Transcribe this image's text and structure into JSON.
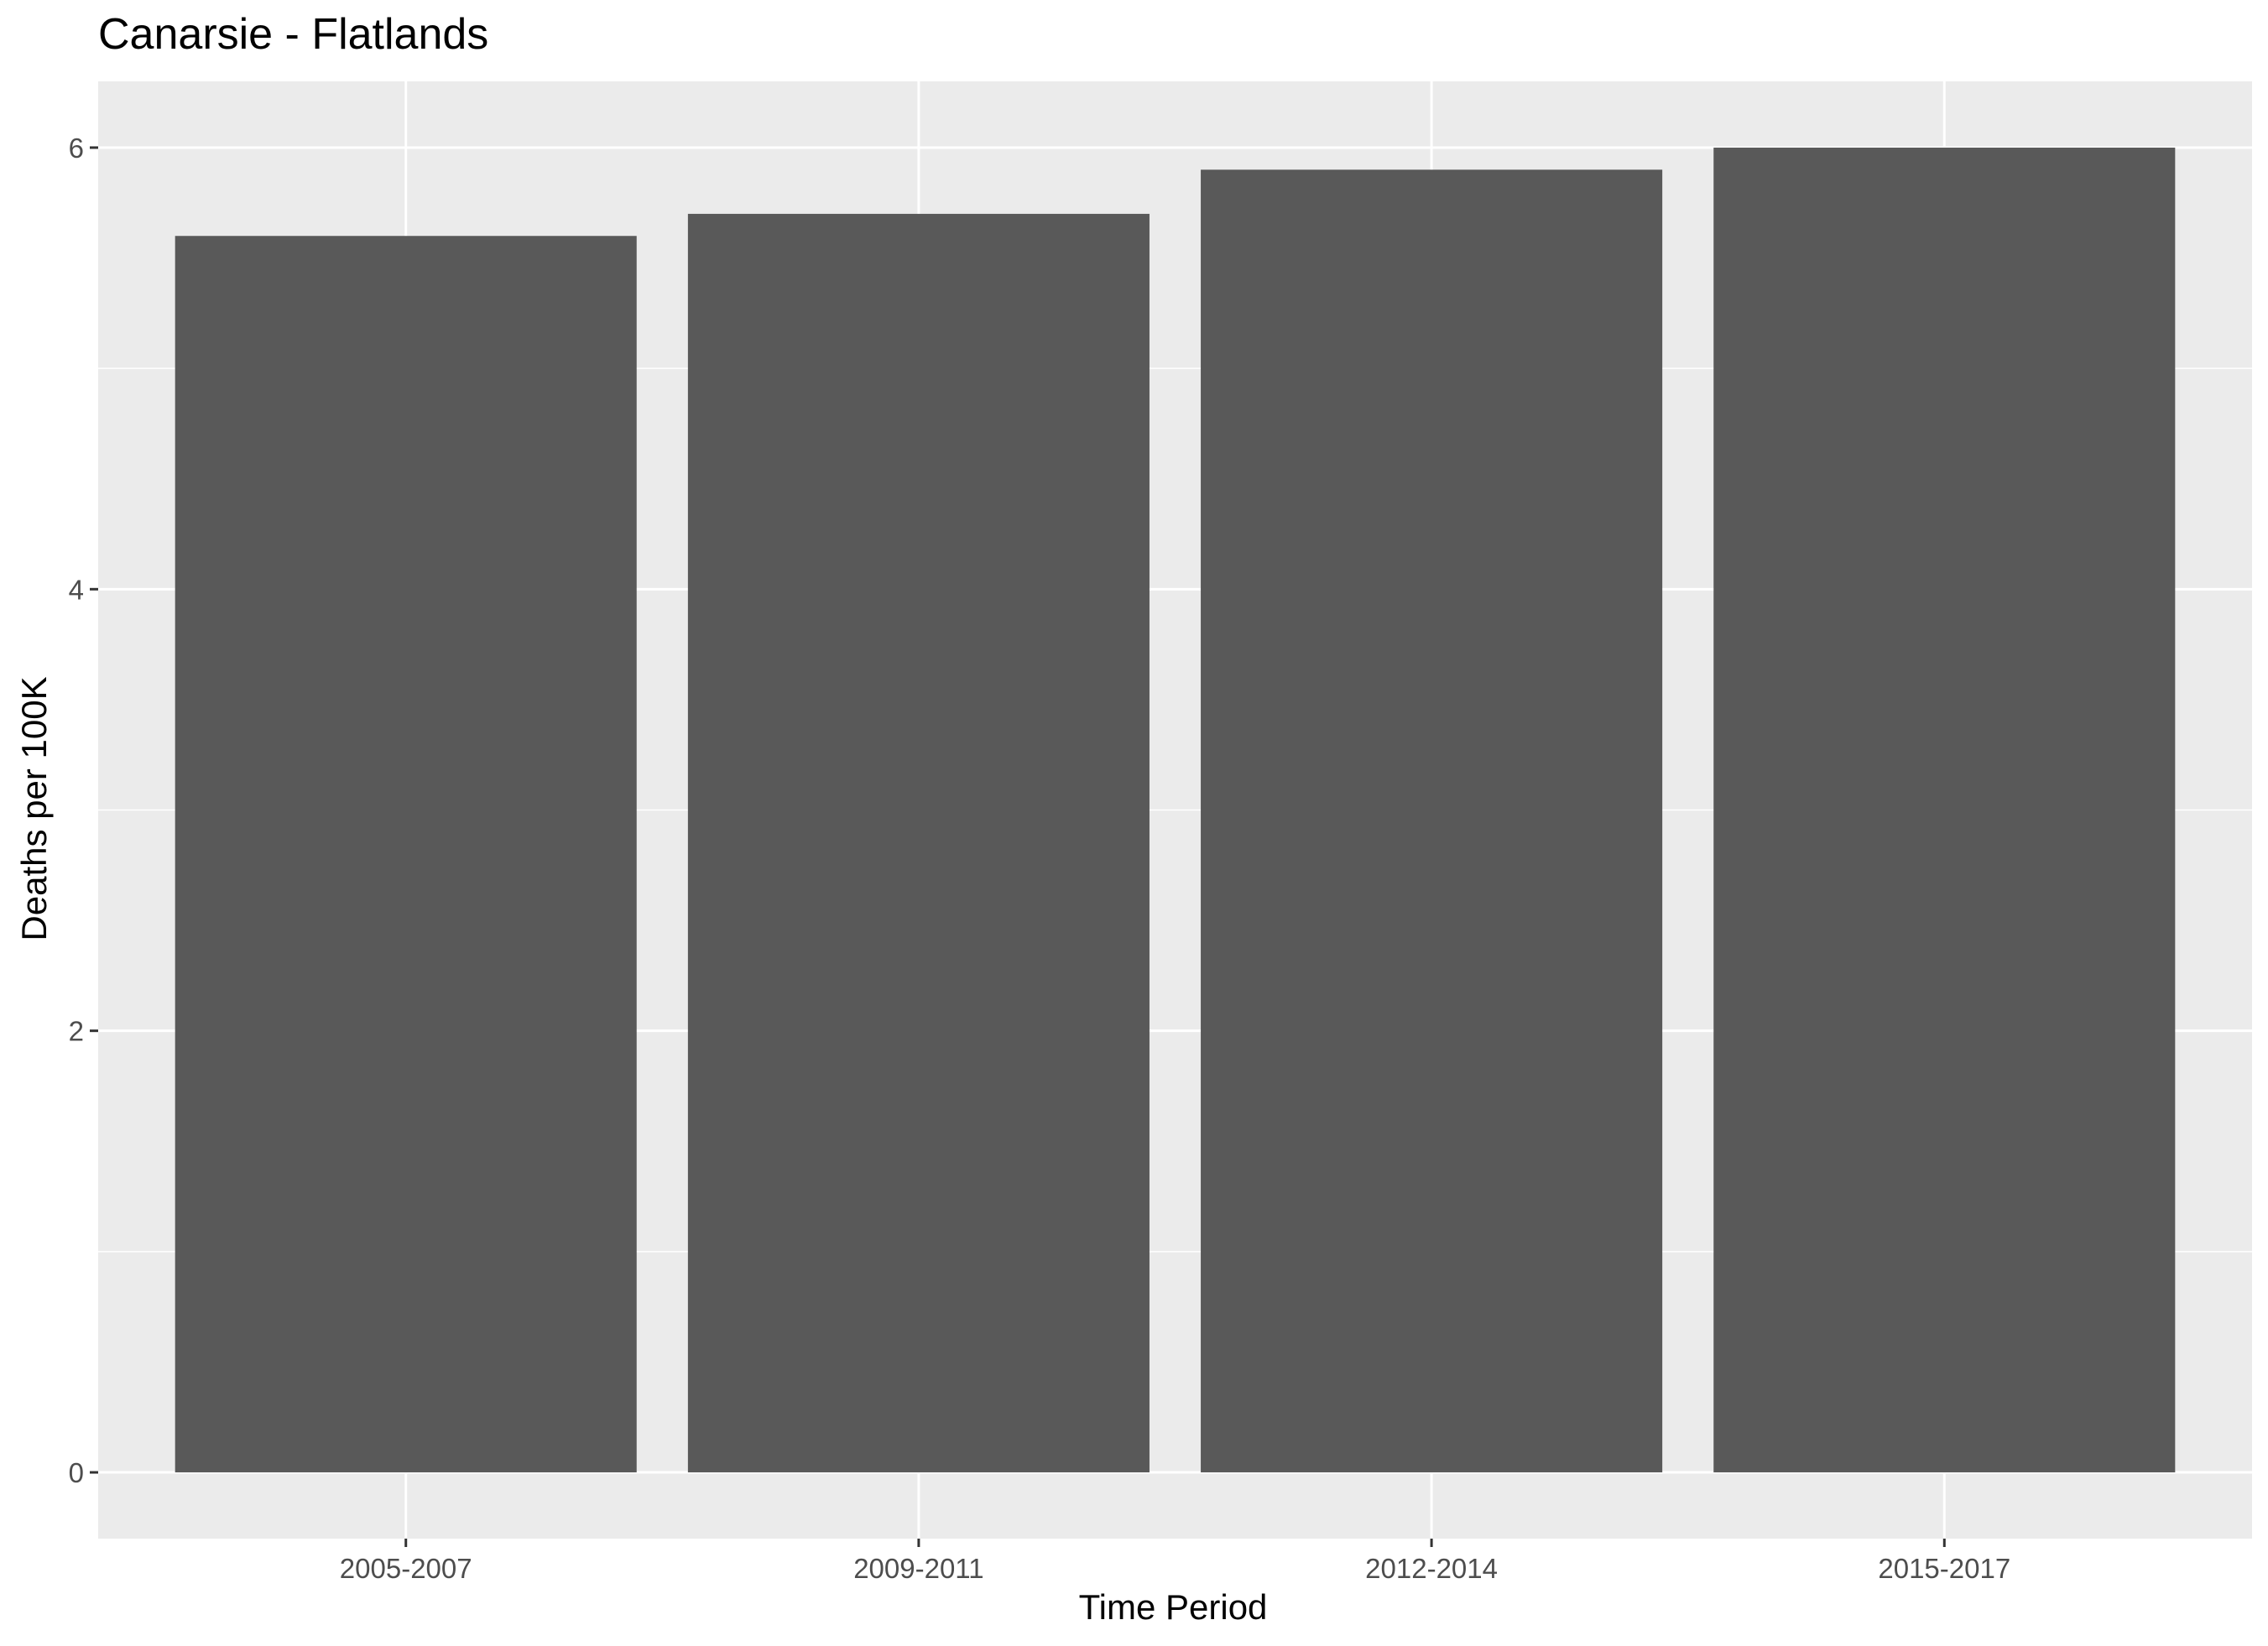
{
  "chart_data": {
    "type": "bar",
    "title": "Canarsie - Flatlands",
    "xlabel": "Time Period",
    "ylabel": "Deaths per 100K",
    "categories": [
      "2005-2007",
      "2009-2011",
      "2012-2014",
      "2015-2017"
    ],
    "values": [
      5.6,
      5.7,
      5.9,
      6.0
    ],
    "ylim": [
      -0.3,
      6.3
    ],
    "yticks": [
      0,
      2,
      4,
      6
    ],
    "ytick_labels": [
      "0",
      "2",
      "4",
      "6"
    ],
    "grid": true,
    "bar_color": "#595959",
    "panel_background": "#ebebeb",
    "grid_color": "#ffffff"
  }
}
